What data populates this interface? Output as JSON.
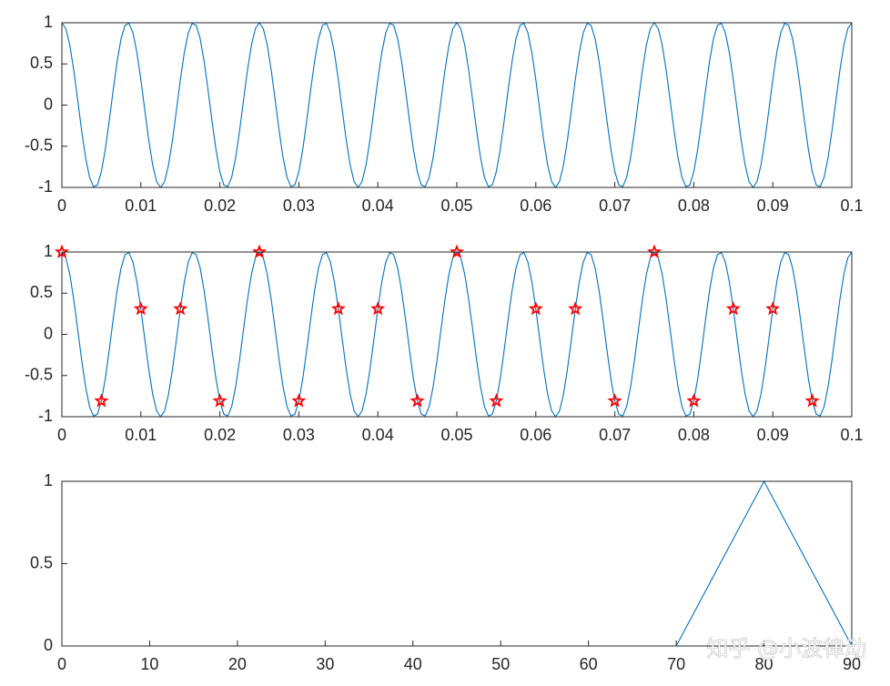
{
  "chart_data": [
    {
      "type": "line",
      "xlim": [
        0,
        0.1
      ],
      "xticks": [
        0,
        0.01,
        0.02,
        0.03,
        0.04,
        0.05,
        0.06,
        0.07,
        0.08,
        0.09,
        0.1
      ],
      "ylim": [
        -1,
        1
      ],
      "yticks": [
        -1,
        -0.5,
        0,
        0.5,
        1
      ],
      "series": [
        {
          "color": "#0072bd",
          "x": [
            0,
            0.0005,
            0.001,
            0.0015,
            0.002,
            0.0025,
            0.003,
            0.0035,
            0.004,
            0.0045,
            0.005,
            0.0055,
            0.006,
            0.0065,
            0.007,
            0.0075,
            0.008,
            0.0085,
            0.009,
            0.0095,
            0.01,
            0.0105,
            0.011,
            0.0115,
            0.012,
            0.0125,
            0.013,
            0.0135,
            0.014,
            0.0145,
            0.015,
            0.0155,
            0.016,
            0.0165,
            0.017,
            0.0175,
            0.018,
            0.0185,
            0.019,
            0.0195,
            0.02,
            0.0205,
            0.021,
            0.0215,
            0.022,
            0.0225,
            0.023,
            0.0235,
            0.024,
            0.0245,
            0.025,
            0.0255,
            0.026,
            0.0265,
            0.027,
            0.0275,
            0.028,
            0.0285,
            0.029,
            0.0295,
            0.03,
            0.0305,
            0.031,
            0.0315,
            0.032,
            0.0325,
            0.033,
            0.0335,
            0.034,
            0.0345,
            0.035,
            0.0355,
            0.036,
            0.0365,
            0.037,
            0.0375,
            0.038,
            0.0385,
            0.039,
            0.0395,
            0.04,
            0.0405,
            0.041,
            0.0415,
            0.042,
            0.0425,
            0.043,
            0.0435,
            0.044,
            0.0445,
            0.045,
            0.0455,
            0.046,
            0.0465,
            0.047,
            0.0475,
            0.048,
            0.0485,
            0.049,
            0.0495,
            0.05,
            0.0505,
            0.051,
            0.0515,
            0.052,
            0.0525,
            0.053,
            0.0535,
            0.054,
            0.0545,
            0.055,
            0.0555,
            0.056,
            0.0565,
            0.057,
            0.0575,
            0.058,
            0.0585,
            0.059,
            0.0595,
            0.06,
            0.0605,
            0.061,
            0.0615,
            0.062,
            0.0625,
            0.063,
            0.0635,
            0.064,
            0.0645,
            0.065,
            0.0655,
            0.066,
            0.0665,
            0.067,
            0.0675,
            0.068,
            0.0685,
            0.069,
            0.0695,
            0.07,
            0.0705,
            0.071,
            0.0715,
            0.072,
            0.0725,
            0.073,
            0.0735,
            0.074,
            0.0745,
            0.075,
            0.0755,
            0.076,
            0.0765,
            0.077,
            0.0775,
            0.078,
            0.0785,
            0.079,
            0.0795,
            0.08,
            0.0805,
            0.081,
            0.0815,
            0.082,
            0.0825,
            0.083,
            0.0835,
            0.084,
            0.0845,
            0.085,
            0.0855,
            0.086,
            0.0865,
            0.087,
            0.0875,
            0.088,
            0.0885,
            0.089,
            0.0895,
            0.09,
            0.0905,
            0.091,
            0.0915,
            0.092,
            0.0925,
            0.093,
            0.0935,
            0.094,
            0.0945,
            0.095,
            0.0955,
            0.096,
            0.0965,
            0.097,
            0.0975,
            0.098,
            0.0985,
            0.099,
            0.0995,
            0.1
          ],
          "values": [
            1,
            0.93,
            0.729,
            0.426,
            0.063,
            -0.309,
            -0.637,
            -0.876,
            -0.992,
            -0.969,
            -0.809,
            -0.536,
            -0.187,
            0.187,
            0.536,
            0.809,
            0.969,
            0.992,
            0.876,
            0.637,
            0.309,
            -0.063,
            -0.426,
            -0.729,
            -0.93,
            -1,
            -0.93,
            -0.729,
            -0.426,
            -0.063,
            0.309,
            0.637,
            0.876,
            0.992,
            0.969,
            0.809,
            0.536,
            0.187,
            -0.187,
            -0.536,
            -0.809,
            -0.969,
            -0.992,
            -0.876,
            -0.637,
            -0.309,
            0.063,
            0.426,
            0.729,
            0.93,
            1,
            0.93,
            0.729,
            0.426,
            0.063,
            -0.309,
            -0.637,
            -0.876,
            -0.992,
            -0.969,
            -0.809,
            -0.536,
            -0.187,
            0.187,
            0.536,
            0.809,
            0.969,
            0.992,
            0.876,
            0.637,
            0.309,
            -0.063,
            -0.426,
            -0.729,
            -0.93,
            -1,
            -0.93,
            -0.729,
            -0.426,
            -0.063,
            0.309,
            0.637,
            0.876,
            0.992,
            0.969,
            0.809,
            0.536,
            0.187,
            -0.187,
            -0.536,
            -0.809,
            -0.969,
            -0.992,
            -0.876,
            -0.637,
            -0.309,
            0.063,
            0.426,
            0.729,
            0.93,
            1,
            0.93,
            0.729,
            0.426,
            0.063,
            -0.309,
            -0.637,
            -0.876,
            -0.992,
            -0.969,
            -0.809,
            -0.536,
            -0.187,
            0.187,
            0.536,
            0.809,
            0.969,
            0.992,
            0.876,
            0.637,
            0.309,
            -0.063,
            -0.426,
            -0.729,
            -0.93,
            -1,
            -0.93,
            -0.729,
            -0.426,
            -0.063,
            0.309,
            0.637,
            0.876,
            0.992,
            0.969,
            0.809,
            0.536,
            0.187,
            -0.187,
            -0.536,
            -0.809,
            -0.969,
            -0.992,
            -0.876,
            -0.637,
            -0.309,
            0.063,
            0.426,
            0.729,
            0.93,
            1,
            0.93,
            0.729,
            0.426,
            0.063,
            -0.309,
            -0.637,
            -0.876,
            -0.992,
            -0.969,
            -0.809,
            -0.536,
            -0.187,
            0.187,
            0.536,
            0.809,
            0.969,
            0.992,
            0.876,
            0.637,
            0.309,
            -0.063,
            -0.426,
            -0.729,
            -0.93,
            -1,
            -0.93,
            -0.729,
            -0.426,
            -0.063,
            0.309,
            0.637,
            0.876,
            0.992,
            0.969,
            0.809,
            0.536,
            0.187,
            -0.187,
            -0.536,
            -0.809,
            -0.969,
            -0.992,
            -0.876,
            -0.637,
            -0.309,
            0.063,
            0.426,
            0.729,
            0.93,
            1
          ]
        }
      ]
    },
    {
      "type": "line",
      "xlim": [
        0,
        0.1
      ],
      "xticks": [
        0,
        0.01,
        0.02,
        0.03,
        0.04,
        0.05,
        0.06,
        0.07,
        0.08,
        0.09,
        0.1
      ],
      "ylim": [
        -1,
        1
      ],
      "yticks": [
        -1,
        -0.5,
        0,
        0.5,
        1
      ],
      "series": [
        {
          "color": "#0072bd",
          "x": [
            0,
            0.0005,
            0.001,
            0.0015,
            0.002,
            0.0025,
            0.003,
            0.0035,
            0.004,
            0.0045,
            0.005,
            0.0055,
            0.006,
            0.0065,
            0.007,
            0.0075,
            0.008,
            0.0085,
            0.009,
            0.0095,
            0.01,
            0.0105,
            0.011,
            0.0115,
            0.012,
            0.0125,
            0.013,
            0.0135,
            0.014,
            0.0145,
            0.015,
            0.0155,
            0.016,
            0.0165,
            0.017,
            0.0175,
            0.018,
            0.0185,
            0.019,
            0.0195,
            0.02,
            0.0205,
            0.021,
            0.0215,
            0.022,
            0.0225,
            0.023,
            0.0235,
            0.024,
            0.0245,
            0.025,
            0.0255,
            0.026,
            0.0265,
            0.027,
            0.0275,
            0.028,
            0.0285,
            0.029,
            0.0295,
            0.03,
            0.0305,
            0.031,
            0.0315,
            0.032,
            0.0325,
            0.033,
            0.0335,
            0.034,
            0.0345,
            0.035,
            0.0355,
            0.036,
            0.0365,
            0.037,
            0.0375,
            0.038,
            0.0385,
            0.039,
            0.0395,
            0.04,
            0.0405,
            0.041,
            0.0415,
            0.042,
            0.0425,
            0.043,
            0.0435,
            0.044,
            0.0445,
            0.045,
            0.0455,
            0.046,
            0.0465,
            0.047,
            0.0475,
            0.048,
            0.0485,
            0.049,
            0.0495,
            0.05,
            0.0505,
            0.051,
            0.0515,
            0.052,
            0.0525,
            0.053,
            0.0535,
            0.054,
            0.0545,
            0.055,
            0.0555,
            0.056,
            0.0565,
            0.057,
            0.0575,
            0.058,
            0.0585,
            0.059,
            0.0595,
            0.06,
            0.0605,
            0.061,
            0.0615,
            0.062,
            0.0625,
            0.063,
            0.0635,
            0.064,
            0.0645,
            0.065,
            0.0655,
            0.066,
            0.0665,
            0.067,
            0.0675,
            0.068,
            0.0685,
            0.069,
            0.0695,
            0.07,
            0.0705,
            0.071,
            0.0715,
            0.072,
            0.0725,
            0.073,
            0.0735,
            0.074,
            0.0745,
            0.075,
            0.0755,
            0.076,
            0.0765,
            0.077,
            0.0775,
            0.078,
            0.0785,
            0.079,
            0.0795,
            0.08,
            0.0805,
            0.081,
            0.0815,
            0.082,
            0.0825,
            0.083,
            0.0835,
            0.084,
            0.0845,
            0.085,
            0.0855,
            0.086,
            0.0865,
            0.087,
            0.0875,
            0.088,
            0.0885,
            0.089,
            0.0895,
            0.09,
            0.0905,
            0.091,
            0.0915,
            0.092,
            0.0925,
            0.093,
            0.0935,
            0.094,
            0.0945,
            0.095,
            0.0955,
            0.096,
            0.0965,
            0.097,
            0.0975,
            0.098,
            0.0985,
            0.099,
            0.0995,
            0.1
          ],
          "values": [
            1,
            0.93,
            0.729,
            0.426,
            0.063,
            -0.309,
            -0.637,
            -0.876,
            -0.992,
            -0.969,
            -0.809,
            -0.536,
            -0.187,
            0.187,
            0.536,
            0.809,
            0.969,
            0.992,
            0.876,
            0.637,
            0.309,
            -0.063,
            -0.426,
            -0.729,
            -0.93,
            -1,
            -0.93,
            -0.729,
            -0.426,
            -0.063,
            0.309,
            0.637,
            0.876,
            0.992,
            0.969,
            0.809,
            0.536,
            0.187,
            -0.187,
            -0.536,
            -0.809,
            -0.969,
            -0.992,
            -0.876,
            -0.637,
            -0.309,
            0.063,
            0.426,
            0.729,
            0.93,
            1,
            0.93,
            0.729,
            0.426,
            0.063,
            -0.309,
            -0.637,
            -0.876,
            -0.992,
            -0.969,
            -0.809,
            -0.536,
            -0.187,
            0.187,
            0.536,
            0.809,
            0.969,
            0.992,
            0.876,
            0.637,
            0.309,
            -0.063,
            -0.426,
            -0.729,
            -0.93,
            -1,
            -0.93,
            -0.729,
            -0.426,
            -0.063,
            0.309,
            0.637,
            0.876,
            0.992,
            0.969,
            0.809,
            0.536,
            0.187,
            -0.187,
            -0.536,
            -0.809,
            -0.969,
            -0.992,
            -0.876,
            -0.637,
            -0.309,
            0.063,
            0.426,
            0.729,
            0.93,
            1,
            0.93,
            0.729,
            0.426,
            0.063,
            -0.309,
            -0.637,
            -0.876,
            -0.992,
            -0.969,
            -0.809,
            -0.536,
            -0.187,
            0.187,
            0.536,
            0.809,
            0.969,
            0.992,
            0.876,
            0.637,
            0.309,
            -0.063,
            -0.426,
            -0.729,
            -0.93,
            -1,
            -0.93,
            -0.729,
            -0.426,
            -0.063,
            0.309,
            0.637,
            0.876,
            0.992,
            0.969,
            0.809,
            0.536,
            0.187,
            -0.187,
            -0.536,
            -0.809,
            -0.969,
            -0.992,
            -0.876,
            -0.637,
            -0.309,
            0.063,
            0.426,
            0.729,
            0.93,
            1,
            0.93,
            0.729,
            0.426,
            0.063,
            -0.309,
            -0.637,
            -0.876,
            -0.992,
            -0.969,
            -0.809,
            -0.536,
            -0.187,
            0.187,
            0.536,
            0.809,
            0.969,
            0.992,
            0.876,
            0.637,
            0.309,
            -0.063,
            -0.426,
            -0.729,
            -0.93,
            -1,
            -0.93,
            -0.729,
            -0.426,
            -0.063,
            0.309,
            0.637,
            0.876,
            0.992,
            0.969,
            0.809,
            0.536,
            0.187,
            -0.187,
            -0.536,
            -0.809,
            -0.969,
            -0.992,
            -0.876,
            -0.637,
            -0.309,
            0.063,
            0.426,
            0.729,
            0.93,
            1
          ]
        },
        {
          "color": "#ff0000",
          "marker": "pentagram",
          "x": [
            0,
            0.005,
            0.01,
            0.015,
            0.02,
            0.025,
            0.03,
            0.035,
            0.04,
            0.045,
            0.05,
            0.055,
            0.06,
            0.065,
            0.07,
            0.075,
            0.08,
            0.085,
            0.09,
            0.095
          ],
          "values": [
            1,
            -0.809,
            0.309,
            0.309,
            -0.809,
            1,
            -0.809,
            0.309,
            0.309,
            -0.809,
            1,
            -0.809,
            0.309,
            0.309,
            -0.809,
            1,
            -0.809,
            0.309,
            0.309,
            -0.809
          ]
        }
      ]
    },
    {
      "type": "line",
      "xlim": [
        0,
        90
      ],
      "xticks": [
        0,
        10,
        20,
        30,
        40,
        50,
        60,
        70,
        80,
        90
      ],
      "ylim": [
        0,
        1
      ],
      "yticks": [
        0,
        0.5,
        1
      ],
      "watermark": "知乎 @小波律动",
      "series": [
        {
          "color": "#0072bd",
          "x": [
            0,
            10,
            20,
            30,
            40,
            50,
            60,
            70,
            80,
            90
          ],
          "values": [
            0,
            0,
            0,
            0,
            0,
            0,
            0,
            0,
            1,
            0
          ]
        }
      ]
    }
  ]
}
